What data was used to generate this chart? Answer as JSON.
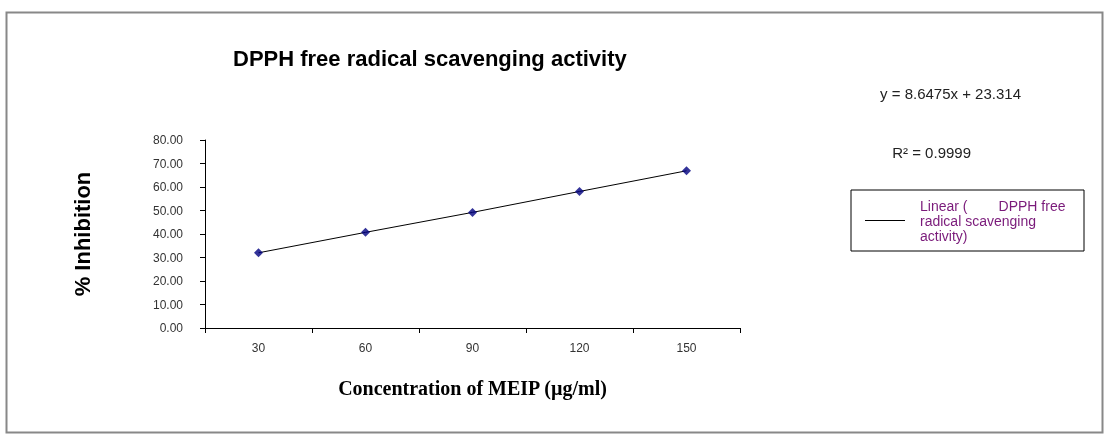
{
  "chart_data": {
    "type": "scatter",
    "title": "DPPH free radical scavenging activity",
    "xlabel": "Concentration of MEIP (µg/ml)",
    "ylabel": "% Inhibition",
    "categories": [
      "30",
      "60",
      "90",
      "120",
      "150"
    ],
    "series": [
      {
        "color": "#000080",
        "marker": "diamond",
        "values": [
          32,
          40.7,
          49.2,
          58.1,
          66.9
        ]
      },
      {
        "type": "line",
        "name": "Linear (        DPPH free radical scavenging activity)",
        "color": "#000000",
        "marker": "none",
        "values": [
          32,
          40.7,
          49.2,
          58.1,
          66.9
        ]
      }
    ],
    "ylim": [
      0,
      80
    ],
    "yticks": [
      {
        "value": 0,
        "label": "0.00"
      },
      {
        "value": 10,
        "label": "10.00"
      },
      {
        "value": 20,
        "label": "20.00"
      },
      {
        "value": 30,
        "label": "30.00"
      },
      {
        "value": 40,
        "label": "40.00"
      },
      {
        "value": 50,
        "label": "50.00"
      },
      {
        "value": 60,
        "label": "60.00"
      },
      {
        "value": 70,
        "label": "70.00"
      },
      {
        "value": 80,
        "label": "80.00"
      }
    ],
    "annotations": [
      "y = 8.6475x + 23.314",
      "R² = 0.9999"
    ],
    "legend": "right",
    "grid": false
  }
}
